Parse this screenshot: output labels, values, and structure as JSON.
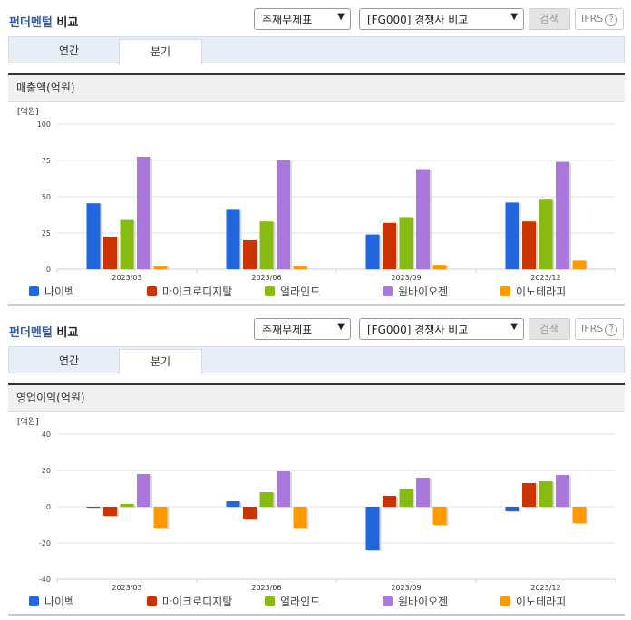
{
  "panels": [
    {
      "title_blue": "펀더멘털",
      "title_rest": " 비교",
      "select_statement": "주재무제표",
      "select_group": "[FG000] 경쟁사 비교",
      "search_label": "검색",
      "ifrs_label": "IFRS",
      "help_glyph": "?",
      "tabs": [
        {
          "label": "연간",
          "active": false
        },
        {
          "label": "분기",
          "active": true
        }
      ],
      "metric_label": "매출액(억원)",
      "unit_label": "[억원]"
    },
    {
      "title_blue": "펀더멘털",
      "title_rest": " 비교",
      "select_statement": "주재무제표",
      "select_group": "[FG000] 경쟁사 비교",
      "search_label": "검색",
      "ifrs_label": "IFRS",
      "help_glyph": "?",
      "tabs": [
        {
          "label": "연간",
          "active": false
        },
        {
          "label": "분기",
          "active": true
        }
      ],
      "metric_label": "영업이익(억원)",
      "unit_label": "[억원]"
    }
  ],
  "chart_data": [
    {
      "type": "bar",
      "title": "매출액(억원)",
      "ylabel": "[억원]",
      "xlabel": "",
      "categories": [
        "2023/03",
        "2023/06",
        "2023/09",
        "2023/12"
      ],
      "ylim": [
        0,
        100
      ],
      "yticks": [
        0,
        25,
        50,
        75,
        100
      ],
      "grid": true,
      "legend_position": "bottom",
      "series": [
        {
          "name": "나이벡",
          "color": "#2266dd",
          "values": [
            45.5,
            41,
            24,
            46
          ]
        },
        {
          "name": "마이크로디지탈",
          "color": "#cc3300",
          "values": [
            22.5,
            20,
            32,
            33
          ]
        },
        {
          "name": "얼라인드",
          "color": "#88bb11",
          "values": [
            34,
            33,
            36,
            48
          ]
        },
        {
          "name": "원바이오젠",
          "color": "#aa77dd",
          "values": [
            77.5,
            75,
            69,
            74
          ]
        },
        {
          "name": "이노테라피",
          "color": "#ff9900",
          "values": [
            2,
            2,
            3,
            6
          ]
        }
      ]
    },
    {
      "type": "bar",
      "title": "영업이익(억원)",
      "ylabel": "[억원]",
      "xlabel": "",
      "categories": [
        "2023/03",
        "2023/06",
        "2023/09",
        "2023/12"
      ],
      "ylim": [
        -40,
        40
      ],
      "yticks": [
        -40,
        -20,
        0,
        20,
        40
      ],
      "grid": true,
      "legend_position": "bottom",
      "series": [
        {
          "name": "나이벡",
          "color": "#2266dd",
          "values": [
            -0.5,
            3,
            -24,
            -2.5
          ]
        },
        {
          "name": "마이크로디지탈",
          "color": "#cc3300",
          "values": [
            -5,
            -7,
            6,
            13
          ]
        },
        {
          "name": "얼라인드",
          "color": "#88bb11",
          "values": [
            1.5,
            8,
            10,
            14
          ]
        },
        {
          "name": "원바이오젠",
          "color": "#aa77dd",
          "values": [
            18,
            19.5,
            16,
            17.5
          ]
        },
        {
          "name": "이노테라피",
          "color": "#ff9900",
          "values": [
            -12,
            -12,
            -10,
            -9
          ]
        }
      ]
    }
  ]
}
